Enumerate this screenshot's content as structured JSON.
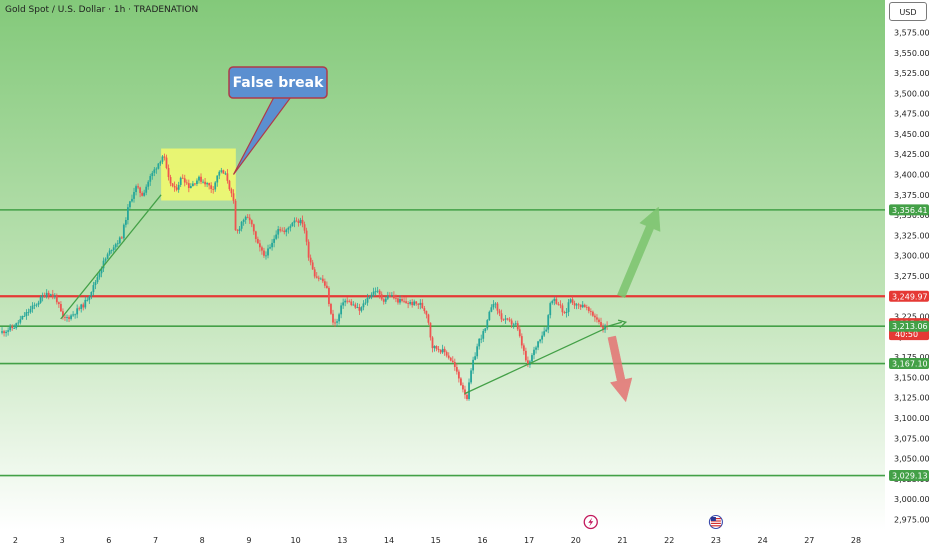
{
  "header": {
    "title": "Gold Spot / U.S. Dollar · 1h · TRADENATION",
    "currency": "USD"
  },
  "colors": {
    "bull": "#26a69a",
    "bear": "#ef5350",
    "support": "#43a047",
    "resistance": "#e53935",
    "callout_bg": "#5b8fd0",
    "callout_border": "#b03a48",
    "highlight": "#ffff66",
    "up_arrow": "#7cc46e",
    "down_arrow": "#e57373",
    "last_price": "#e53935",
    "bg_top": "#83c97a",
    "bg_bottom": "#ffffff"
  },
  "chart_data": {
    "type": "candlestick",
    "symbol": "Gold Spot / U.S. Dollar",
    "interval": "1h",
    "ylim": [
      2962,
      3615
    ],
    "xlim": [
      0,
      22
    ],
    "y_ticks": [
      2975,
      3000,
      3025,
      3050,
      3075,
      3100,
      3125,
      3150,
      3175,
      3200,
      3225,
      3250,
      3275,
      3300,
      3325,
      3350,
      3375,
      3400,
      3425,
      3450,
      3475,
      3500,
      3525,
      3550,
      3575
    ],
    "x_ticks": [
      {
        "x": 0.33,
        "label": "2"
      },
      {
        "x": 1.33,
        "label": "3"
      },
      {
        "x": 2.33,
        "label": "6"
      },
      {
        "x": 3.33,
        "label": "7"
      },
      {
        "x": 4.33,
        "label": "8"
      },
      {
        "x": 5.33,
        "label": "9"
      },
      {
        "x": 6.33,
        "label": "10"
      },
      {
        "x": 7.33,
        "label": "13"
      },
      {
        "x": 8.33,
        "label": "14"
      },
      {
        "x": 9.33,
        "label": "15"
      },
      {
        "x": 10.33,
        "label": "16"
      },
      {
        "x": 11.33,
        "label": "17"
      },
      {
        "x": 12.33,
        "label": "20"
      },
      {
        "x": 13.33,
        "label": "21"
      },
      {
        "x": 14.33,
        "label": "22"
      },
      {
        "x": 15.33,
        "label": "23"
      },
      {
        "x": 16.33,
        "label": "24"
      },
      {
        "x": 17.33,
        "label": "27"
      },
      {
        "x": 18.33,
        "label": "28"
      }
    ],
    "price_path": [
      [
        0.0,
        3205
      ],
      [
        0.3,
        3212
      ],
      [
        0.5,
        3225
      ],
      [
        0.8,
        3242
      ],
      [
        1.0,
        3255
      ],
      [
        1.2,
        3248
      ],
      [
        1.35,
        3222
      ],
      [
        1.5,
        3225
      ],
      [
        1.8,
        3240
      ],
      [
        2.0,
        3262
      ],
      [
        2.2,
        3290
      ],
      [
        2.4,
        3310
      ],
      [
        2.6,
        3322
      ],
      [
        2.75,
        3360
      ],
      [
        2.9,
        3385
      ],
      [
        3.05,
        3375
      ],
      [
        3.2,
        3395
      ],
      [
        3.35,
        3410
      ],
      [
        3.5,
        3425
      ],
      [
        3.6,
        3395
      ],
      [
        3.75,
        3380
      ],
      [
        3.9,
        3398
      ],
      [
        4.05,
        3385
      ],
      [
        4.25,
        3395
      ],
      [
        4.4,
        3390
      ],
      [
        4.55,
        3382
      ],
      [
        4.7,
        3405
      ],
      [
        4.85,
        3398
      ],
      [
        5.0,
        3365
      ],
      [
        5.05,
        3325
      ],
      [
        5.2,
        3345
      ],
      [
        5.35,
        3345
      ],
      [
        5.5,
        3315
      ],
      [
        5.65,
        3300
      ],
      [
        5.8,
        3310
      ],
      [
        5.95,
        3335
      ],
      [
        6.1,
        3328
      ],
      [
        6.3,
        3345
      ],
      [
        6.5,
        3340
      ],
      [
        6.6,
        3302
      ],
      [
        6.75,
        3275
      ],
      [
        6.9,
        3270
      ],
      [
        7.0,
        3258
      ],
      [
        7.1,
        3222
      ],
      [
        7.2,
        3215
      ],
      [
        7.35,
        3245
      ],
      [
        7.5,
        3242
      ],
      [
        7.7,
        3232
      ],
      [
        7.9,
        3250
      ],
      [
        8.05,
        3258
      ],
      [
        8.2,
        3245
      ],
      [
        8.35,
        3252
      ],
      [
        8.5,
        3245
      ],
      [
        8.7,
        3242
      ],
      [
        9.0,
        3240
      ],
      [
        9.15,
        3228
      ],
      [
        9.25,
        3188
      ],
      [
        9.4,
        3185
      ],
      [
        9.55,
        3180
      ],
      [
        9.7,
        3168
      ],
      [
        9.85,
        3145
      ],
      [
        10.0,
        3125
      ],
      [
        10.1,
        3162
      ],
      [
        10.25,
        3195
      ],
      [
        10.4,
        3210
      ],
      [
        10.55,
        3245
      ],
      [
        10.75,
        3222
      ],
      [
        10.9,
        3218
      ],
      [
        11.05,
        3215
      ],
      [
        11.2,
        3185
      ],
      [
        11.3,
        3162
      ],
      [
        11.4,
        3178
      ],
      [
        11.55,
        3198
      ],
      [
        11.7,
        3212
      ],
      [
        11.8,
        3248
      ],
      [
        11.95,
        3242
      ],
      [
        12.1,
        3225
      ],
      [
        12.2,
        3248
      ],
      [
        12.35,
        3238
      ],
      [
        12.5,
        3240
      ],
      [
        12.65,
        3228
      ],
      [
        12.8,
        3222
      ],
      [
        12.9,
        3210
      ],
      [
        13.0,
        3214
      ]
    ],
    "levels": [
      {
        "price": 3356.41,
        "label": "3,356.41",
        "kind": "support"
      },
      {
        "price": 3249.97,
        "label": "3,249.97",
        "kind": "resistance"
      },
      {
        "price": 3215.65,
        "label": "3,215.65",
        "kind": "last_price",
        "countdown": "40:50"
      },
      {
        "price": 3213.06,
        "label": "3,213.06",
        "kind": "support"
      },
      {
        "price": 3167.1,
        "label": "3,167.10",
        "kind": "support"
      },
      {
        "price": 3029.13,
        "label": "3,029.13",
        "kind": "support"
      }
    ],
    "trendlines": [
      {
        "from": [
          1.3,
          3222
        ],
        "to": [
          3.45,
          3375
        ]
      },
      {
        "from": [
          9.95,
          3130
        ],
        "to": [
          12.95,
          3210
        ]
      }
    ],
    "highlight_box": {
      "x0": 3.45,
      "x1": 5.05,
      "y0": 3368,
      "y1": 3432
    },
    "callout": {
      "text": "False break",
      "target": [
        5.0,
        3400
      ]
    },
    "arrows": [
      {
        "direction": "up",
        "from": [
          13.3,
          3250
        ],
        "to": [
          14.1,
          3360
        ]
      },
      {
        "direction": "down",
        "from": [
          13.1,
          3200
        ],
        "to": [
          13.4,
          3120
        ]
      },
      {
        "direction": "right",
        "from": [
          12.95,
          3212
        ],
        "to": [
          13.4,
          3218
        ]
      }
    ],
    "event_icons": [
      {
        "x": 12.65,
        "name": "lightning-event-icon"
      },
      {
        "x": 15.33,
        "name": "us-flag-event-icon"
      }
    ]
  }
}
